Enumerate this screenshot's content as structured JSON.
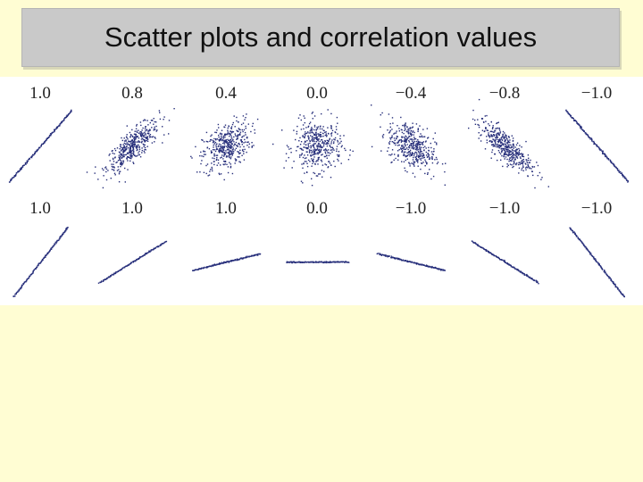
{
  "page": {
    "title": "Scatter plots and correlation values",
    "background_color": "#fffdd3",
    "title_bar_color": "#c9c9c9",
    "point_color": "#262e7a"
  },
  "chart_data": [
    {
      "type": "scatter",
      "row": 1,
      "description_of_row": "noisy point clouds",
      "panels": [
        {
          "label": "1.0",
          "r": 1.0
        },
        {
          "label": "0.8",
          "r": 0.8
        },
        {
          "label": "0.4",
          "r": 0.4
        },
        {
          "label": "0.0",
          "r": 0.0
        },
        {
          "label": "−0.4",
          "r": -0.4
        },
        {
          "label": "−0.8",
          "r": -0.8
        },
        {
          "label": "−1.0",
          "r": -1.0
        }
      ]
    },
    {
      "type": "scatter",
      "row": 2,
      "panels": [
        {
          "label": "1.0",
          "r": 1.0,
          "slope_deg": 52
        },
        {
          "label": "1.0",
          "r": 1.0,
          "slope_deg": 32
        },
        {
          "label": "1.0",
          "r": 1.0,
          "slope_deg": 14
        },
        {
          "label": "0.0",
          "r": 0.0,
          "slope_deg": 0
        },
        {
          "label": "−1.0",
          "r": -1.0,
          "slope_deg": -14
        },
        {
          "label": "−1.0",
          "r": -1.0,
          "slope_deg": -32
        },
        {
          "label": "−1.0",
          "r": -1.0,
          "slope_deg": -52
        }
      ]
    }
  ]
}
